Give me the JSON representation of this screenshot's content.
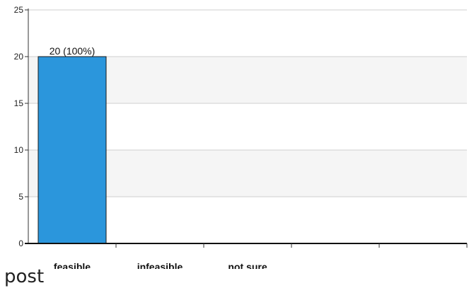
{
  "chart_data": {
    "type": "bar",
    "categories": [
      "feasible",
      "infeasible",
      "not sure",
      "",
      ""
    ],
    "values": [
      20,
      0,
      0,
      0,
      0
    ],
    "data_labels": [
      "20 (100%)",
      "",
      "",
      "",
      ""
    ],
    "ylim": [
      0,
      25
    ],
    "yticks": [
      0,
      5,
      10,
      15,
      20,
      25
    ],
    "grid": true,
    "bar_color": "#2b96dc",
    "band_color": "#f5f5f5"
  },
  "caption": "post"
}
